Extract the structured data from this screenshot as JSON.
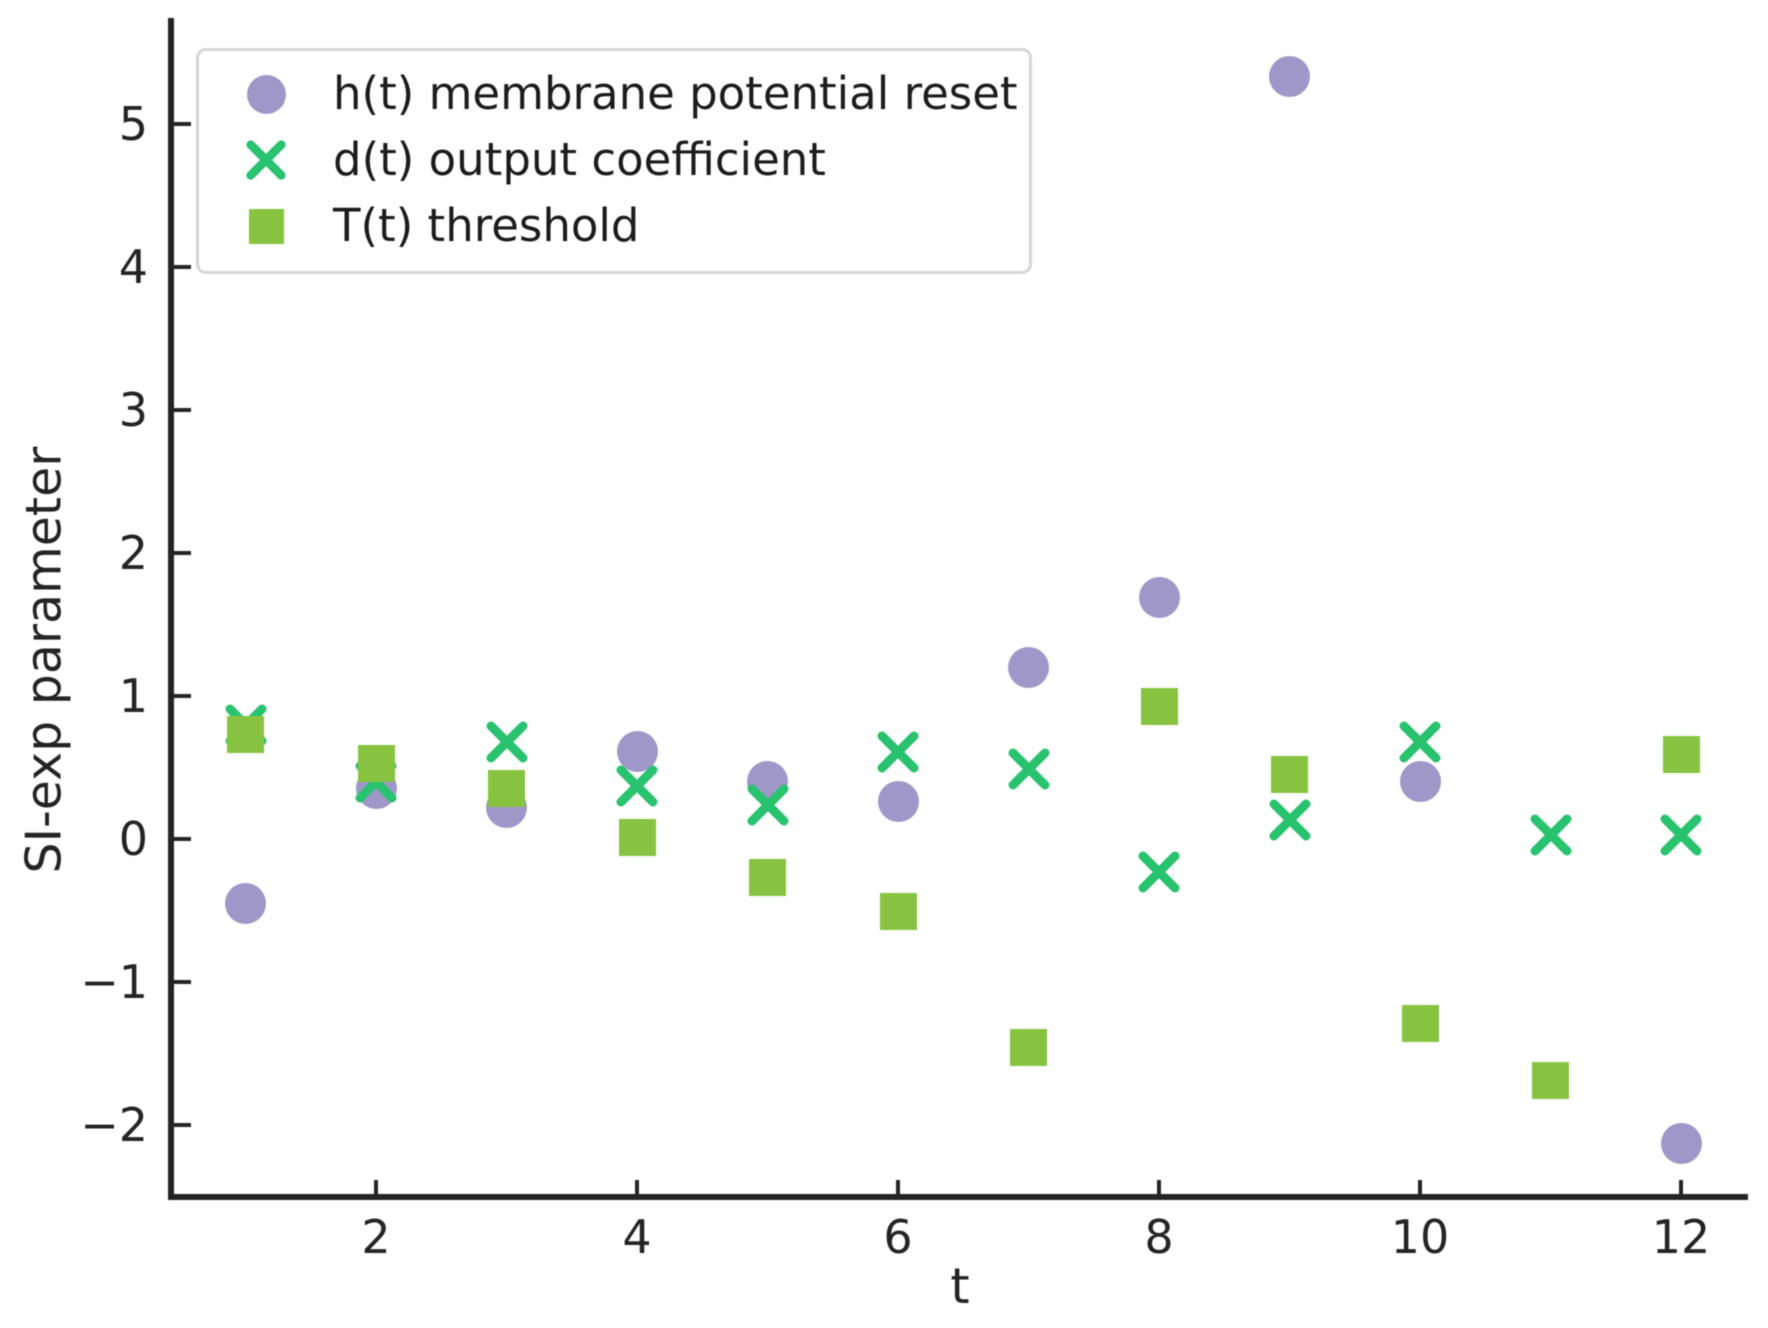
{
  "figure": {
    "background": "#ffffff",
    "axis_color": "#242424",
    "xlabel": "t",
    "ylabel": "SI-exp parameter"
  },
  "legend": {
    "position": "upper left",
    "items": [
      {
        "label": "h(t) membrane potential reset",
        "marker": "circle",
        "color": "#9e97c8"
      },
      {
        "label": "d(t) output coefficient",
        "marker": "x",
        "color": "#29c26e"
      },
      {
        "label": "T(t) threshold",
        "marker": "square",
        "color": "#87c340"
      }
    ]
  },
  "chart_data": {
    "type": "scatter",
    "title": "",
    "xlabel": "t",
    "ylabel": "SI-exp parameter",
    "xlim": [
      0.4,
      12.5
    ],
    "ylim": [
      -2.5,
      5.75
    ],
    "grid": false,
    "legend_position": "upper left",
    "x_ticks": [
      2,
      4,
      6,
      8,
      10,
      12
    ],
    "x_tick_labels": [
      "2",
      "4",
      "6",
      "8",
      "10",
      "12"
    ],
    "y_ticks": [
      -2,
      -1,
      0,
      1,
      2,
      3,
      4,
      5
    ],
    "y_tick_labels": [
      "−2",
      "−1",
      "0",
      "1",
      "2",
      "3",
      "4",
      "5"
    ],
    "x": [
      1,
      2,
      3,
      4,
      5,
      6,
      7,
      8,
      9,
      10,
      11,
      12
    ],
    "series": [
      {
        "name": "h(t) membrane potential reset",
        "marker": "circle",
        "color": "#9e97c8",
        "values": [
          -0.45,
          0.35,
          0.22,
          0.61,
          0.4,
          0.26,
          1.2,
          1.69,
          5.33,
          0.4,
          null,
          -2.13
        ]
      },
      {
        "name": "d(t) output coefficient",
        "marker": "x",
        "color": "#29c26e",
        "values": [
          0.8,
          0.4,
          0.68,
          0.37,
          0.24,
          0.61,
          0.49,
          -0.23,
          0.13,
          0.68,
          0.03,
          0.03
        ]
      },
      {
        "name": "T(t) threshold",
        "marker": "square",
        "color": "#87c340",
        "values": [
          0.73,
          0.53,
          0.35,
          0.01,
          -0.27,
          -0.51,
          -1.46,
          0.93,
          0.45,
          -1.29,
          -1.69,
          0.59
        ]
      }
    ]
  }
}
